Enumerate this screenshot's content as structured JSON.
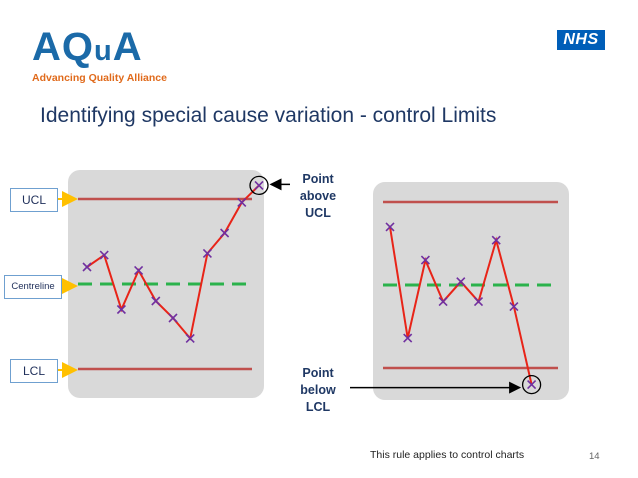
{
  "branding": {
    "logo_main": "AQ",
    "logo_small": "u",
    "logo_end": "A",
    "logo_tagline": "Advancing Quality Alliance",
    "nhs_logo": "NHS"
  },
  "slide": {
    "title": "Identifying special cause variation  - control Limits",
    "footer_note": "This rule applies to control charts",
    "page_number": "14"
  },
  "labels": {
    "ucl": "UCL",
    "centreline": "Centreline",
    "lcl": "LCL",
    "point_above": [
      "Point",
      "above",
      "UCL"
    ],
    "point_below": [
      "Point",
      "below",
      "LCL"
    ]
  },
  "colors": {
    "limit_line": "#c0504d",
    "centre_line": "#2bb24c",
    "data_line": "#e82418",
    "marker": "#7030a0",
    "panel": "#d9d9d9",
    "arrow": "#ffc000"
  },
  "chart_data": [
    {
      "type": "line",
      "title": "",
      "ucl": 100,
      "centreline": 50,
      "lcl": 0,
      "x": [
        1,
        2,
        3,
        4,
        5,
        6,
        7,
        8,
        9,
        10,
        11
      ],
      "values": [
        60,
        67,
        35,
        58,
        40,
        30,
        18,
        68,
        80,
        98,
        108
      ],
      "highlight_index": 10
    },
    {
      "type": "line",
      "title": "",
      "ucl": 100,
      "centreline": 50,
      "lcl": 0,
      "x": [
        1,
        2,
        3,
        4,
        5,
        6,
        7,
        8,
        9
      ],
      "values": [
        85,
        18,
        65,
        40,
        52,
        40,
        77,
        37,
        -10
      ],
      "highlight_index": 8
    }
  ]
}
